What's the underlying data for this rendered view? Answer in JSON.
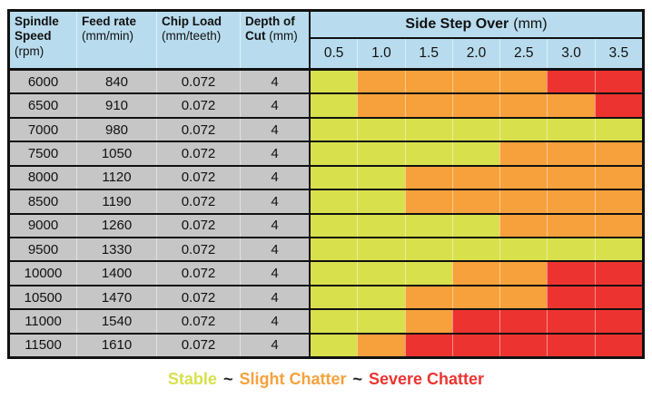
{
  "chart_data": {
    "type": "heatmap",
    "title": "Milling stability map: Side Step Over vs Spindle Speed",
    "param_columns": [
      {
        "key": "spindle-speed",
        "label_bold": "Spindle Speed",
        "unit": "(rpm)"
      },
      {
        "key": "feed-rate",
        "label_bold": "Feed rate",
        "unit": "(mm/min)"
      },
      {
        "key": "chip-load",
        "label_bold": "Chip Load",
        "unit": "(mm/teeth)"
      },
      {
        "key": "depth-of-cut",
        "label_bold": "Depth of Cut",
        "unit": "(mm)"
      }
    ],
    "stepover_header": {
      "title_bold": "Side Step Over",
      "unit": "(mm)"
    },
    "stepover_values_mm": [
      "0.5",
      "1.0",
      "1.5",
      "2.0",
      "2.5",
      "3.0",
      "3.5"
    ],
    "stability_levels": {
      "stable": "#d8e04c",
      "slight": "#f7a13c",
      "severe": "#ed3330"
    },
    "rows": [
      {
        "spindle_speed_rpm": "6000",
        "feed_rate_mm_min": "840",
        "chip_load_mm_teeth": "0.072",
        "depth_of_cut_mm": "4",
        "stability": [
          "stable",
          "slight",
          "slight",
          "slight",
          "slight",
          "severe",
          "severe"
        ]
      },
      {
        "spindle_speed_rpm": "6500",
        "feed_rate_mm_min": "910",
        "chip_load_mm_teeth": "0.072",
        "depth_of_cut_mm": "4",
        "stability": [
          "stable",
          "slight",
          "slight",
          "slight",
          "slight",
          "slight",
          "severe"
        ]
      },
      {
        "spindle_speed_rpm": "7000",
        "feed_rate_mm_min": "980",
        "chip_load_mm_teeth": "0.072",
        "depth_of_cut_mm": "4",
        "stability": [
          "stable",
          "stable",
          "stable",
          "stable",
          "stable",
          "stable",
          "stable"
        ]
      },
      {
        "spindle_speed_rpm": "7500",
        "feed_rate_mm_min": "1050",
        "chip_load_mm_teeth": "0.072",
        "depth_of_cut_mm": "4",
        "stability": [
          "stable",
          "stable",
          "stable",
          "stable",
          "slight",
          "slight",
          "slight"
        ]
      },
      {
        "spindle_speed_rpm": "8000",
        "feed_rate_mm_min": "1120",
        "chip_load_mm_teeth": "0.072",
        "depth_of_cut_mm": "4",
        "stability": [
          "stable",
          "stable",
          "slight",
          "slight",
          "slight",
          "slight",
          "slight"
        ]
      },
      {
        "spindle_speed_rpm": "8500",
        "feed_rate_mm_min": "1190",
        "chip_load_mm_teeth": "0.072",
        "depth_of_cut_mm": "4",
        "stability": [
          "stable",
          "stable",
          "slight",
          "slight",
          "slight",
          "slight",
          "slight"
        ]
      },
      {
        "spindle_speed_rpm": "9000",
        "feed_rate_mm_min": "1260",
        "chip_load_mm_teeth": "0.072",
        "depth_of_cut_mm": "4",
        "stability": [
          "stable",
          "stable",
          "stable",
          "stable",
          "slight",
          "slight",
          "slight"
        ]
      },
      {
        "spindle_speed_rpm": "9500",
        "feed_rate_mm_min": "1330",
        "chip_load_mm_teeth": "0.072",
        "depth_of_cut_mm": "4",
        "stability": [
          "stable",
          "stable",
          "stable",
          "stable",
          "stable",
          "stable",
          "stable"
        ]
      },
      {
        "spindle_speed_rpm": "10000",
        "feed_rate_mm_min": "1400",
        "chip_load_mm_teeth": "0.072",
        "depth_of_cut_mm": "4",
        "stability": [
          "stable",
          "stable",
          "stable",
          "slight",
          "slight",
          "severe",
          "severe"
        ]
      },
      {
        "spindle_speed_rpm": "10500",
        "feed_rate_mm_min": "1470",
        "chip_load_mm_teeth": "0.072",
        "depth_of_cut_mm": "4",
        "stability": [
          "stable",
          "stable",
          "slight",
          "slight",
          "slight",
          "severe",
          "severe"
        ]
      },
      {
        "spindle_speed_rpm": "11000",
        "feed_rate_mm_min": "1540",
        "chip_load_mm_teeth": "0.072",
        "depth_of_cut_mm": "4",
        "stability": [
          "stable",
          "stable",
          "slight",
          "severe",
          "severe",
          "severe",
          "severe"
        ]
      },
      {
        "spindle_speed_rpm": "11500",
        "feed_rate_mm_min": "1610",
        "chip_load_mm_teeth": "0.072",
        "depth_of_cut_mm": "4",
        "stability": [
          "stable",
          "slight",
          "severe",
          "severe",
          "severe",
          "severe",
          "severe"
        ]
      }
    ]
  },
  "legend": {
    "separator": "~",
    "items": [
      {
        "label": "Stable",
        "level": "stable"
      },
      {
        "label": "Slight Chatter",
        "level": "slight"
      },
      {
        "label": "Severe Chatter",
        "level": "severe"
      }
    ]
  },
  "colors": {
    "header_bg": "#b8dcee",
    "param_row_bg": "#c6c6c6",
    "border": "#111111",
    "legend_separator": "#222222"
  }
}
